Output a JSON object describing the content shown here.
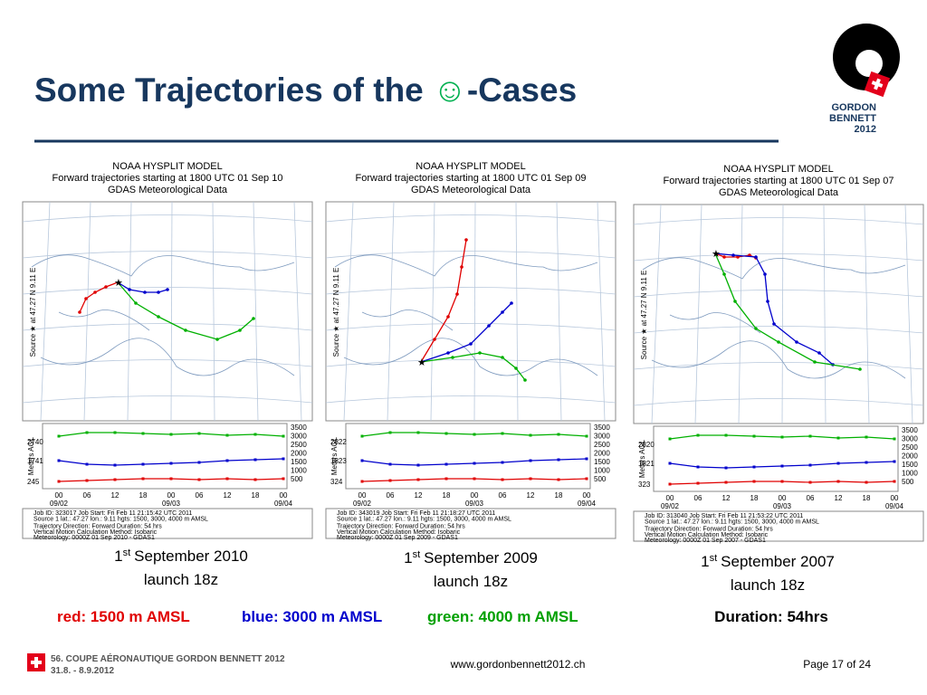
{
  "header": {
    "title": "Some Trajectories of the",
    "smiley": "☺",
    "title_end": "-Cases",
    "logo": [
      "GORDON",
      "BENNETT",
      "2012"
    ]
  },
  "panels": [
    {
      "header": [
        "NOAA HYSPLIT MODEL",
        "Forward trajectories starting at 1800 UTC 01 Sep 10",
        "GDAS Meteorological Data"
      ],
      "source_label": "Source ★ at 47.27 N   9.11 E",
      "agl_label": "Meters AGL",
      "heights": [
        2740,
        1741,
        245
      ],
      "scale": [
        3500,
        3000,
        2500,
        2000,
        1500,
        1000,
        500
      ],
      "times": [
        "00",
        "06",
        "12",
        "18",
        "00",
        "06",
        "12",
        "18",
        "00"
      ],
      "dates": [
        "09/02",
        "09/03",
        "09/04"
      ],
      "info": [
        "Job ID: 323017          Job Start: Fri Feb 11 21:15:42 UTC 2011",
        "Source 1 lat.: 47.27  lon.: 9.11  hgts: 1500, 3000, 4000 m AMSL",
        "Trajectory Direction: Forward      Duration: 54 hrs",
        "Vertical Motion Calculation Method:       Isobaric",
        "Meteorology: 0000Z 01 Sep 2010 - GDAS1"
      ],
      "caption": {
        "day": "1",
        "suffix": "st",
        "rest": "September 2010",
        "launch": "launch 18z"
      }
    },
    {
      "header": [
        "NOAA HYSPLIT MODEL",
        "Forward trajectories starting at 1800 UTC 01 Sep 09",
        "GDAS Meteorological Data"
      ],
      "source_label": "Source ★ at 47.27 N   9.11 E",
      "agl_label": "Meters AGL",
      "heights": [
        2822,
        1823,
        324
      ],
      "scale": [
        3500,
        3000,
        2500,
        2000,
        1500,
        1000,
        500
      ],
      "times": [
        "00",
        "06",
        "12",
        "18",
        "00",
        "06",
        "12",
        "18",
        "00"
      ],
      "dates": [
        "09/02",
        "09/03",
        "09/04"
      ],
      "info": [
        "Job ID: 343019          Job Start: Fri Feb 11 21:18:27 UTC 2011",
        "Source 1 lat.: 47.27  lon.: 9.11  hgts: 1500, 3000, 4000 m AMSL",
        "Trajectory Direction: Forward      Duration: 54 hrs",
        "Vertical Motion Calculation Method:       Isobaric",
        "Meteorology: 0000Z 01 Sep 2009 - GDAS1"
      ],
      "caption": {
        "day": "1",
        "suffix": "st",
        "rest": "September 2009",
        "launch": "launch 18z"
      }
    },
    {
      "header": [
        "NOAA HYSPLIT MODEL",
        "Forward trajectories starting at 1800 UTC 01 Sep 07",
        "GDAS Meteorological Data"
      ],
      "source_label": "Source ★ at 47.27 N   9.11 E",
      "agl_label": "Meters AGL",
      "heights": [
        2820,
        1821,
        323
      ],
      "scale": [
        3500,
        3000,
        2500,
        2000,
        1500,
        1000,
        500
      ],
      "times": [
        "00",
        "06",
        "12",
        "18",
        "00",
        "06",
        "12",
        "18",
        "00"
      ],
      "dates": [
        "09/02",
        "09/03",
        "09/04"
      ],
      "info": [
        "Job ID: 313040          Job Start: Fri Feb 11 21:53:22 UTC 2011",
        "Source 1 lat.: 47.27  lon.: 9.11  hgts: 1500, 3000, 4000 m AMSL",
        "Trajectory Direction: Forward      Duration: 54 hrs",
        "Vertical Motion Calculation Method:       Isobaric",
        "Meteorology: 0000Z 01 Sep 2007 - GDAS1"
      ],
      "caption": {
        "day": "1",
        "suffix": "st",
        "rest": "September 2007",
        "launch": "launch 18z"
      }
    }
  ],
  "legend": {
    "red": "red: 1500 m AMSL",
    "blue": "blue: 3000 m AMSL",
    "green": "green: 4000 m AMSL",
    "duration": "Duration: 54hrs"
  },
  "footer": {
    "event": "56. COUPE AÉRONAUTIQUE GORDON BENNETT 2012",
    "dates": "31.8. - 8.9.2012",
    "url": "www.gordonbennett2012.ch",
    "page": "Page 17 of 24"
  }
}
